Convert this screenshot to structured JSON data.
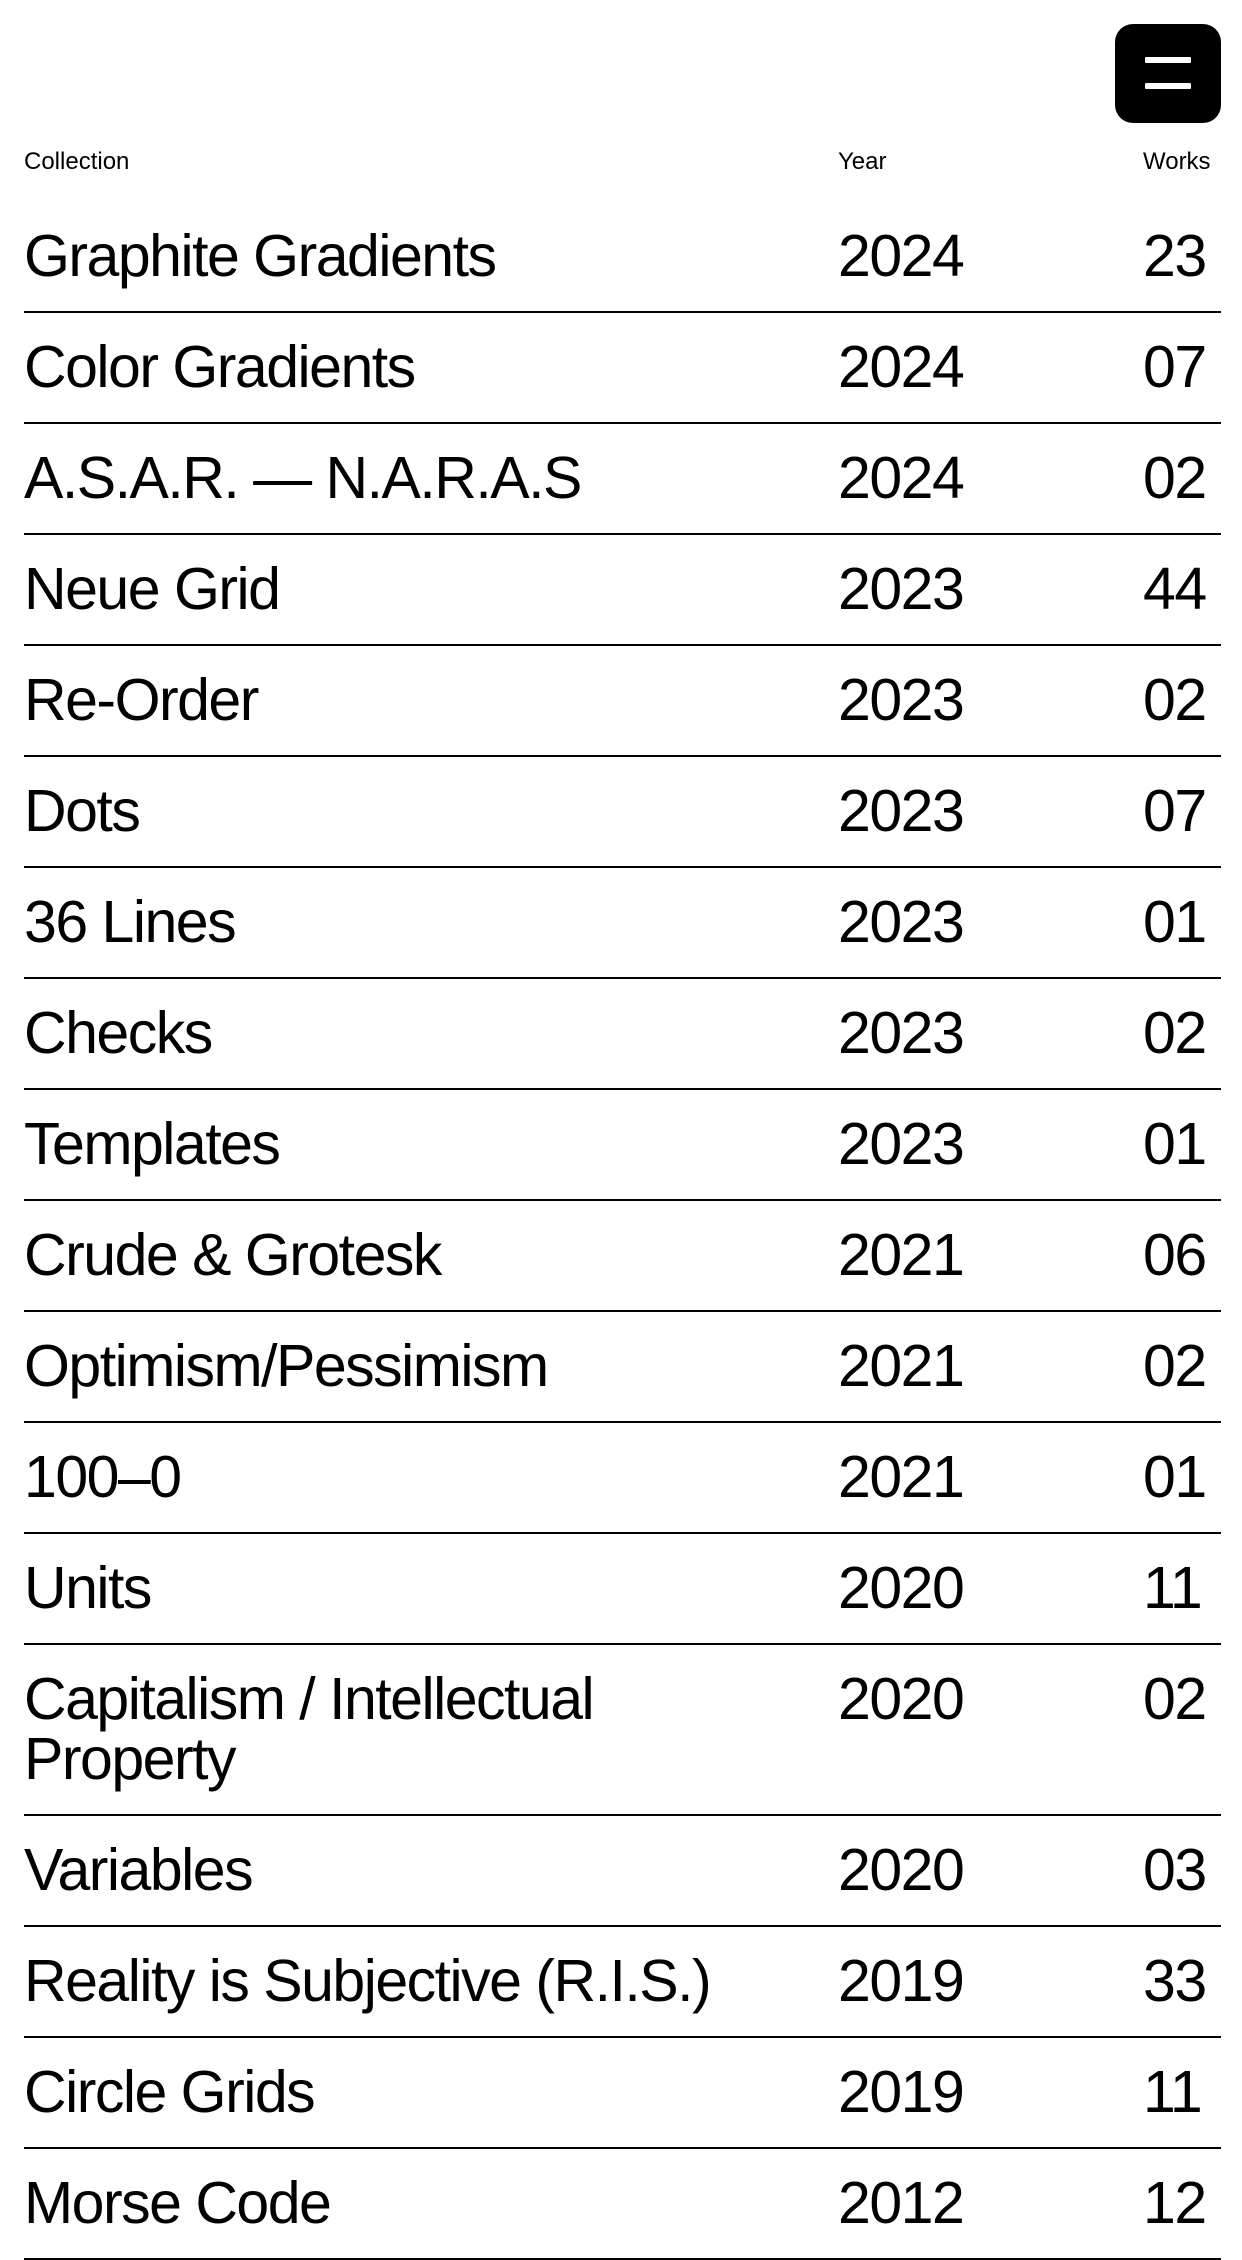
{
  "header": {
    "columns": [
      "Collection",
      "Year",
      "Works"
    ]
  },
  "rows": [
    [
      "Graphite Gradients",
      "2024",
      "23"
    ],
    [
      "Color Gradients",
      "2024",
      "07"
    ],
    [
      "A.S.A.R. — N.A.R.A.S",
      "2024",
      "02"
    ],
    [
      "Neue Grid",
      "2023",
      "44"
    ],
    [
      "Re-Order",
      "2023",
      "02"
    ],
    [
      "Dots",
      "2023",
      "07"
    ],
    [
      "36 Lines",
      "2023",
      "01"
    ],
    [
      "Checks",
      "2023",
      "02"
    ],
    [
      "Templates",
      "2023",
      "01"
    ],
    [
      "Crude & Grotesk",
      "2021",
      "06"
    ],
    [
      "Optimism/Pessimism",
      "2021",
      "02"
    ],
    [
      "100–0",
      "2021",
      "01"
    ],
    [
      "Units",
      "2020",
      "11"
    ],
    [
      "Capitalism / Intellectual Property",
      "2020",
      "02"
    ],
    [
      "Variables",
      "2020",
      "03"
    ],
    [
      "Reality is Subjective (R.I.S.)",
      "2019",
      "33"
    ],
    [
      "Circle Grids",
      "2019",
      "11"
    ],
    [
      "Morse Code",
      "2012",
      "12"
    ]
  ]
}
